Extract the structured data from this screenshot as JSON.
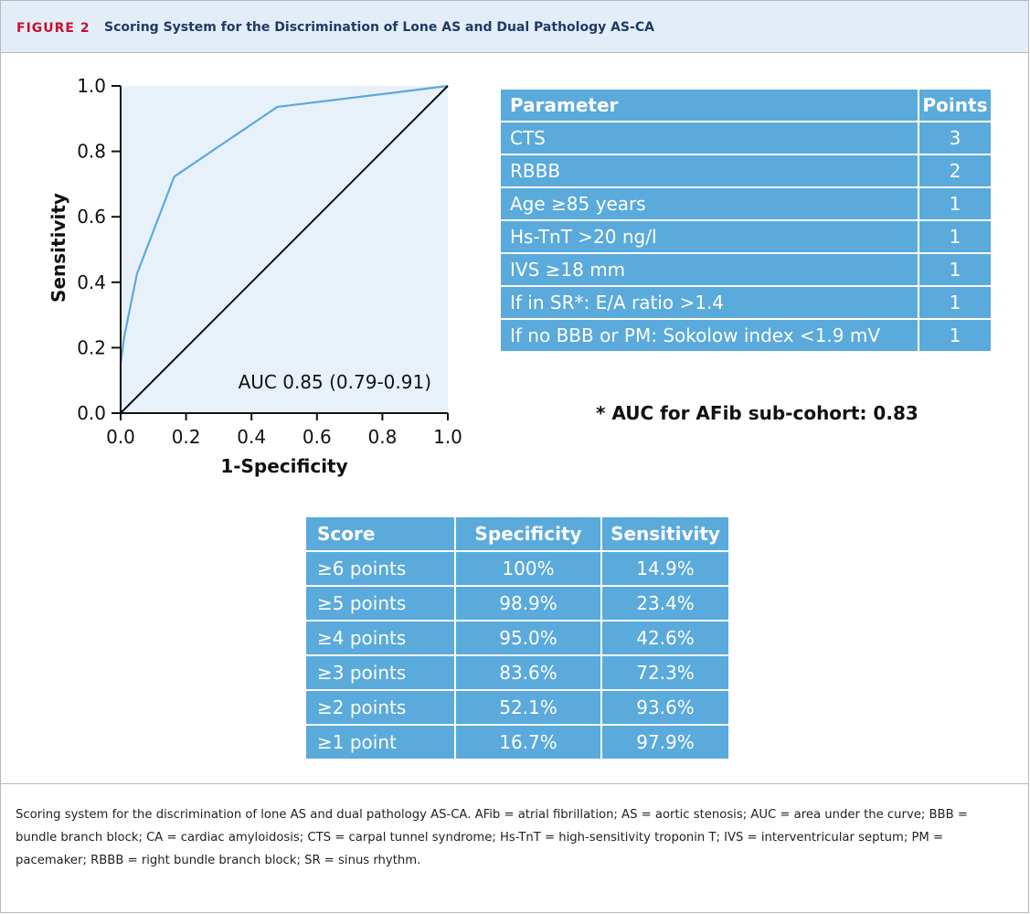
{
  "figure": {
    "label": "FIGURE 2",
    "title": "Scoring System for the Discrimination of Lone AS and Dual Pathology AS-CA"
  },
  "chart_data": {
    "type": "line",
    "xlabel": "1-Specificity",
    "ylabel": "Sensitivity",
    "xlim": [
      0,
      1
    ],
    "ylim": [
      0,
      1
    ],
    "xticks": [
      "0.0",
      "0.2",
      "0.4",
      "0.6",
      "0.8",
      "1.0"
    ],
    "yticks": [
      "0.0",
      "0.2",
      "0.4",
      "0.6",
      "0.8",
      "1.0"
    ],
    "annotation": "AUC 0.85 (0.79-0.91)",
    "series": [
      {
        "x": [
          0,
          0,
          0,
          0.011,
          0.05,
          0.164,
          0.479,
          0.833,
          1.0
        ],
        "y": [
          0,
          0.149,
          0.149,
          0.234,
          0.426,
          0.723,
          0.936,
          0.979,
          1.0
        ],
        "color": "#5aaadc"
      },
      {
        "x": [
          0,
          1
        ],
        "y": [
          0,
          1
        ],
        "color": "#111111"
      }
    ],
    "plot_bg": "#e8f1fa",
    "grid": false
  },
  "parameters": {
    "header": {
      "parameter": "Parameter",
      "points": "Points"
    },
    "rows": [
      {
        "parameter": "CTS",
        "points": "3"
      },
      {
        "parameter": "RBBB",
        "points": "2"
      },
      {
        "parameter": "Age ≥85 years",
        "points": "1"
      },
      {
        "parameter": "Hs-TnT >20 ng/l",
        "points": "1"
      },
      {
        "parameter": "IVS ≥18 mm",
        "points": "1"
      },
      {
        "parameter": "If in SR*: E/A ratio >1.4",
        "points": "1"
      },
      {
        "parameter": "If no BBB or PM: Sokolow index <1.9 mV",
        "points": "1"
      }
    ],
    "note": "* AUC for AFib sub-cohort: 0.83"
  },
  "scores": {
    "header": {
      "score": "Score",
      "specificity": "Specificity",
      "sensitivity": "Sensitivity"
    },
    "rows": [
      {
        "score": "≥6 points",
        "specificity": "100%",
        "sensitivity": "14.9%"
      },
      {
        "score": "≥5 points",
        "specificity": "98.9%",
        "sensitivity": "23.4%"
      },
      {
        "score": "≥4 points",
        "specificity": "95.0%",
        "sensitivity": "42.6%"
      },
      {
        "score": "≥3 points",
        "specificity": "83.6%",
        "sensitivity": "72.3%"
      },
      {
        "score": "≥2 points",
        "specificity": "52.1%",
        "sensitivity": "93.6%"
      },
      {
        "score": "≥1 point",
        "specificity": "16.7%",
        "sensitivity": "97.9%"
      }
    ]
  },
  "caption": "Scoring system for the discrimination of lone AS and dual pathology AS-CA. AFib = atrial fibrillation; AS = aortic stenosis; AUC = area under the curve; BBB = bundle branch block; CA = cardiac amyloidosis; CTS = carpal tunnel syndrome; Hs-TnT = high-sensitivity troponin T; IVS = interventricular septum; PM = pacemaker; RBBB = right bundle branch block; SR = sinus rhythm.",
  "colors": {
    "accent": "#5aaadc",
    "label_red": "#c8102e",
    "header_bg": "#e3edf7"
  }
}
